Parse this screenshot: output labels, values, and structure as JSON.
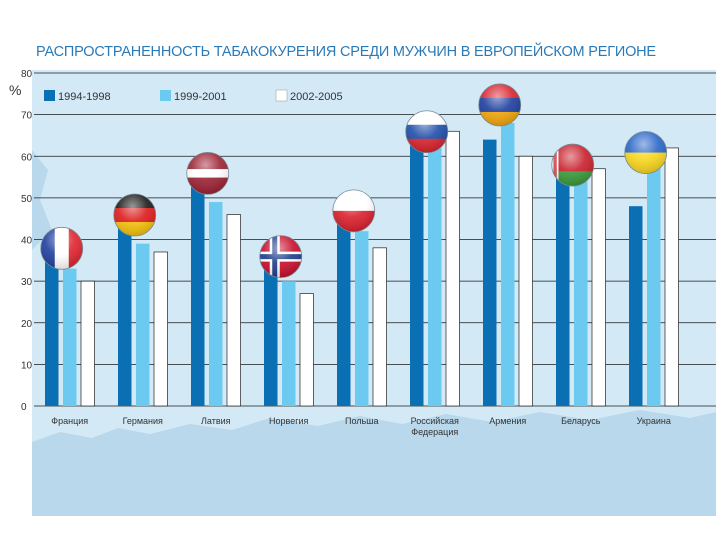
{
  "title": "РАСПРОСТРАНЕННОСТЬ ТАБАКОКУРЕНИЯ СРЕДИ МУЖЧИН В ЕВРОПЕЙСКОМ РЕГИОНЕ",
  "colors": {
    "background": "#d3e9f6",
    "series": [
      "#0b6fb4",
      "#6ccaf0",
      "#ffffff"
    ],
    "map": "#b9d8eb"
  },
  "chart_data": {
    "type": "bar",
    "title": "РАСПРОСТРАНЕННОСТЬ ТАБАКОКУРЕНИЯ СРЕДИ МУЖЧИН В ЕВРОПЕЙСКОМ РЕГИОНЕ",
    "ylabel": "%",
    "ylim": [
      0,
      80
    ],
    "yticks": [
      0,
      10,
      20,
      30,
      40,
      50,
      60,
      70,
      80
    ],
    "grid": true,
    "legend": "top-left",
    "categories": [
      "Франция",
      "Германия",
      "Латвия",
      "Норвегия",
      "Польша",
      "Российская Федерация",
      "Армения",
      "Беларусь",
      "Украина"
    ],
    "category_lines": [
      [
        "Франция"
      ],
      [
        "Германия"
      ],
      [
        "Латвия"
      ],
      [
        "Норвегия"
      ],
      [
        "Польша"
      ],
      [
        "Российская",
        "Федерация"
      ],
      [
        "Армения"
      ],
      [
        "Беларусь"
      ],
      [
        "Украина"
      ]
    ],
    "series": [
      {
        "name": "1994-1998",
        "values": [
          35,
          43,
          53,
          33,
          44,
          63,
          64,
          55,
          48
        ]
      },
      {
        "name": "1999-2001",
        "values": [
          33,
          39,
          49,
          30,
          42,
          62,
          68,
          54,
          58
        ]
      },
      {
        "name": "2002-2005",
        "values": [
          30,
          37,
          46,
          27,
          38,
          66,
          60,
          57,
          62
        ]
      }
    ],
    "flags": [
      "france-flag-icon",
      "germany-flag-icon",
      "latvia-flag-icon",
      "norway-flag-icon",
      "poland-flag-icon",
      "russia-flag-icon",
      "armenia-flag-icon",
      "belarus-flag-icon",
      "ukraine-flag-icon"
    ]
  }
}
